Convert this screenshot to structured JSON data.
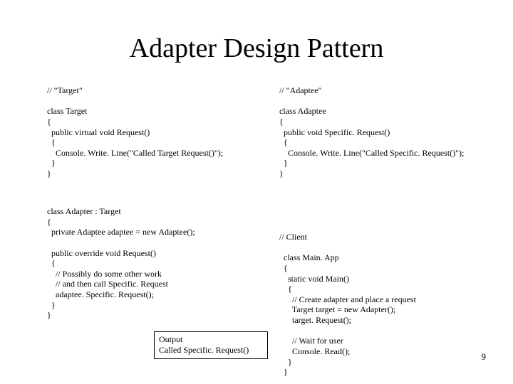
{
  "title": "Adapter Design Pattern",
  "page_number": "9",
  "left_code_a": "// \"Target\"\n\nclass Target\n{\n  public virtual void Request()\n  {\n    Console. Write. Line(\"Called Target Request()\");\n  }\n}",
  "left_code_b": "class Adapter : Target\n{\n  private Adaptee adaptee = new Adaptee();\n\n  public override void Request()\n  {\n    // Possibly do some other work\n    // and then call Specific. Request\n    adaptee. Specific. Request();\n  }\n}",
  "right_code_a": "// \"Adaptee\"\n\nclass Adaptee\n{\n  public void Specific. Request()\n  {\n    Console. Write. Line(\"Called Specific. Request()\");\n  }\n}",
  "right_code_b": "// Client\n\n  class Main. App\n  {\n    static void Main()\n    {\n      // Create adapter and place a request\n      Target target = new Adapter();\n      target. Request();\n\n      // Wait for user\n      Console. Read();\n    }\n  }",
  "output_label": "Output",
  "output_value": "Called Specific. Request()"
}
